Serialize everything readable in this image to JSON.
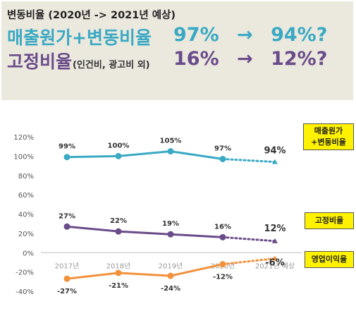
{
  "header": {
    "title": "변동비율 (2020년 -> 2021년 예상)",
    "line1": {
      "label": "매출원가+변동비율",
      "from": "97%",
      "arrow": "→",
      "to": "94%?"
    },
    "line2": {
      "label": "고정비율",
      "sub": "(인건비, 광고비 외)",
      "from": "16%",
      "arrow": "→",
      "to": "12%?"
    }
  },
  "callouts": {
    "cogs": "매출원가\n+변동비율",
    "fixed": "고정비율",
    "op": "영업이익율"
  },
  "colors": {
    "cogs": "#3aa9c4",
    "fixed": "#6a4c8a",
    "op": "#f2923c",
    "axis": "#888888",
    "grid": "#d9d9d9"
  },
  "chart_data": {
    "type": "line",
    "categories": [
      "2017년",
      "2018년",
      "2019년",
      "2020년",
      "2021년 예상"
    ],
    "ylim": [
      -40,
      120
    ],
    "yticks": [
      -40,
      -20,
      0,
      20,
      40,
      60,
      80,
      100,
      120
    ],
    "ytick_labels": [
      "-40%",
      "-20%",
      "0%",
      "20%",
      "40%",
      "60%",
      "80%",
      "100%",
      "120%"
    ],
    "series": [
      {
        "name": "매출원가+변동비율",
        "key": "cogs",
        "values": [
          99,
          100,
          105,
          97,
          94
        ],
        "labels": [
          "99%",
          "100%",
          "105%",
          "97%",
          "94%"
        ]
      },
      {
        "name": "고정비율",
        "key": "fixed",
        "values": [
          27,
          22,
          19,
          16,
          12
        ],
        "labels": [
          "27%",
          "22%",
          "19%",
          "16%",
          "12%"
        ]
      },
      {
        "name": "영업이익율",
        "key": "op",
        "values": [
          -27,
          -21,
          -24,
          -12,
          -6
        ],
        "labels": [
          "-27%",
          "-21%",
          "-24%",
          "-12%",
          "-6%"
        ]
      }
    ],
    "forecast_from_index": 3
  }
}
